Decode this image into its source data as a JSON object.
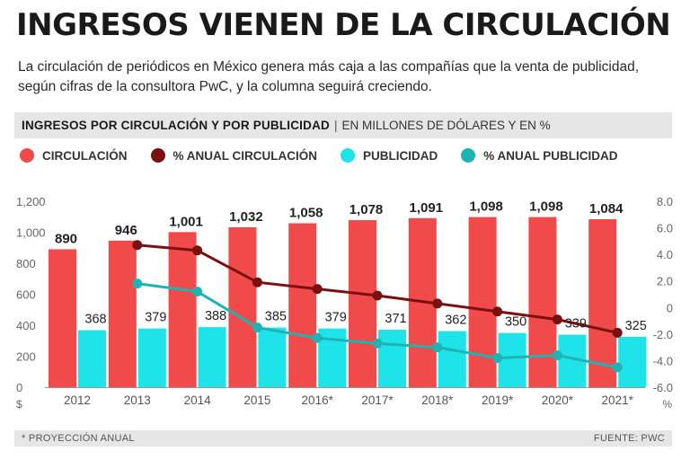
{
  "header": {
    "title": "INGRESOS VIENEN DE LA CIRCULACIÓN",
    "subtitle": "La circulación de periódicos en México genera más caja a las compañías que la venta de publicidad, según cifras de la consultora PwC, y la columna seguirá creciendo."
  },
  "band": {
    "main": "INGRESOS POR CIRCULACIÓN Y POR PUBLICIDAD",
    "separator": "|",
    "unit": "EN MILLONES DE DÓLARES Y EN %"
  },
  "colors": {
    "circulacion": "#f04a4a",
    "anual_circulacion": "#7a1010",
    "publicidad": "#1ee4ea",
    "anual_publicidad": "#1fb3b3"
  },
  "legend": [
    {
      "label": "CIRCULACIÓN",
      "color": "#f04a4a"
    },
    {
      "label": "% ANUAL CIRCULACIÓN",
      "color": "#7a1010"
    },
    {
      "label": "PUBLICIDAD",
      "color": "#1ee4ea"
    },
    {
      "label": "% ANUAL PUBLICIDAD",
      "color": "#1fb3b3"
    }
  ],
  "chart_data": {
    "type": "bar",
    "categories": [
      "2012",
      "2013",
      "2014",
      "2015",
      "2016*",
      "2017*",
      "2018*",
      "2019*",
      "2020*",
      "2021*"
    ],
    "series": [
      {
        "name": "CIRCULACIÓN",
        "type": "bar",
        "axis": "left",
        "values": [
          890,
          946,
          1001,
          1032,
          1058,
          1078,
          1091,
          1098,
          1098,
          1084
        ],
        "labels": [
          "890",
          "946",
          "1,001",
          "1,032",
          "1,058",
          "1,078",
          "1,091",
          "1,098",
          "1,098",
          "1,084"
        ]
      },
      {
        "name": "PUBLICIDAD",
        "type": "bar",
        "axis": "left",
        "values": [
          368,
          379,
          388,
          385,
          379,
          371,
          362,
          350,
          339,
          325
        ],
        "labels": [
          "368",
          "379",
          "388",
          "385",
          "379",
          "371",
          "362",
          "350",
          "339",
          "325"
        ]
      },
      {
        "name": "% ANUAL CIRCULACIÓN",
        "type": "line",
        "axis": "right",
        "values": [
          null,
          4.7,
          4.3,
          1.9,
          1.4,
          0.9,
          0.3,
          -0.3,
          -0.9,
          -1.9
        ]
      },
      {
        "name": "% ANUAL PUBLICIDAD",
        "type": "line",
        "axis": "right",
        "values": [
          null,
          1.8,
          1.2,
          -1.5,
          -2.3,
          -2.7,
          -3.0,
          -3.8,
          -3.6,
          -4.5
        ]
      }
    ],
    "y_left": {
      "range": [
        0,
        1200
      ],
      "ticks": [
        "0",
        "200",
        "400",
        "600",
        "800",
        "1,000",
        "1,200"
      ],
      "unit": "$"
    },
    "y_right": {
      "range": [
        -6,
        8
      ],
      "ticks": [
        "-6.0",
        "-4.0",
        "-2.0",
        "0",
        "2.0",
        "4.0",
        "6.0",
        "8.0"
      ],
      "unit": "%"
    },
    "grid": false,
    "legend_position": "top"
  },
  "footer": {
    "note": "* PROYECCIÓN ANUAL",
    "source": "FUENTE: PWC"
  }
}
